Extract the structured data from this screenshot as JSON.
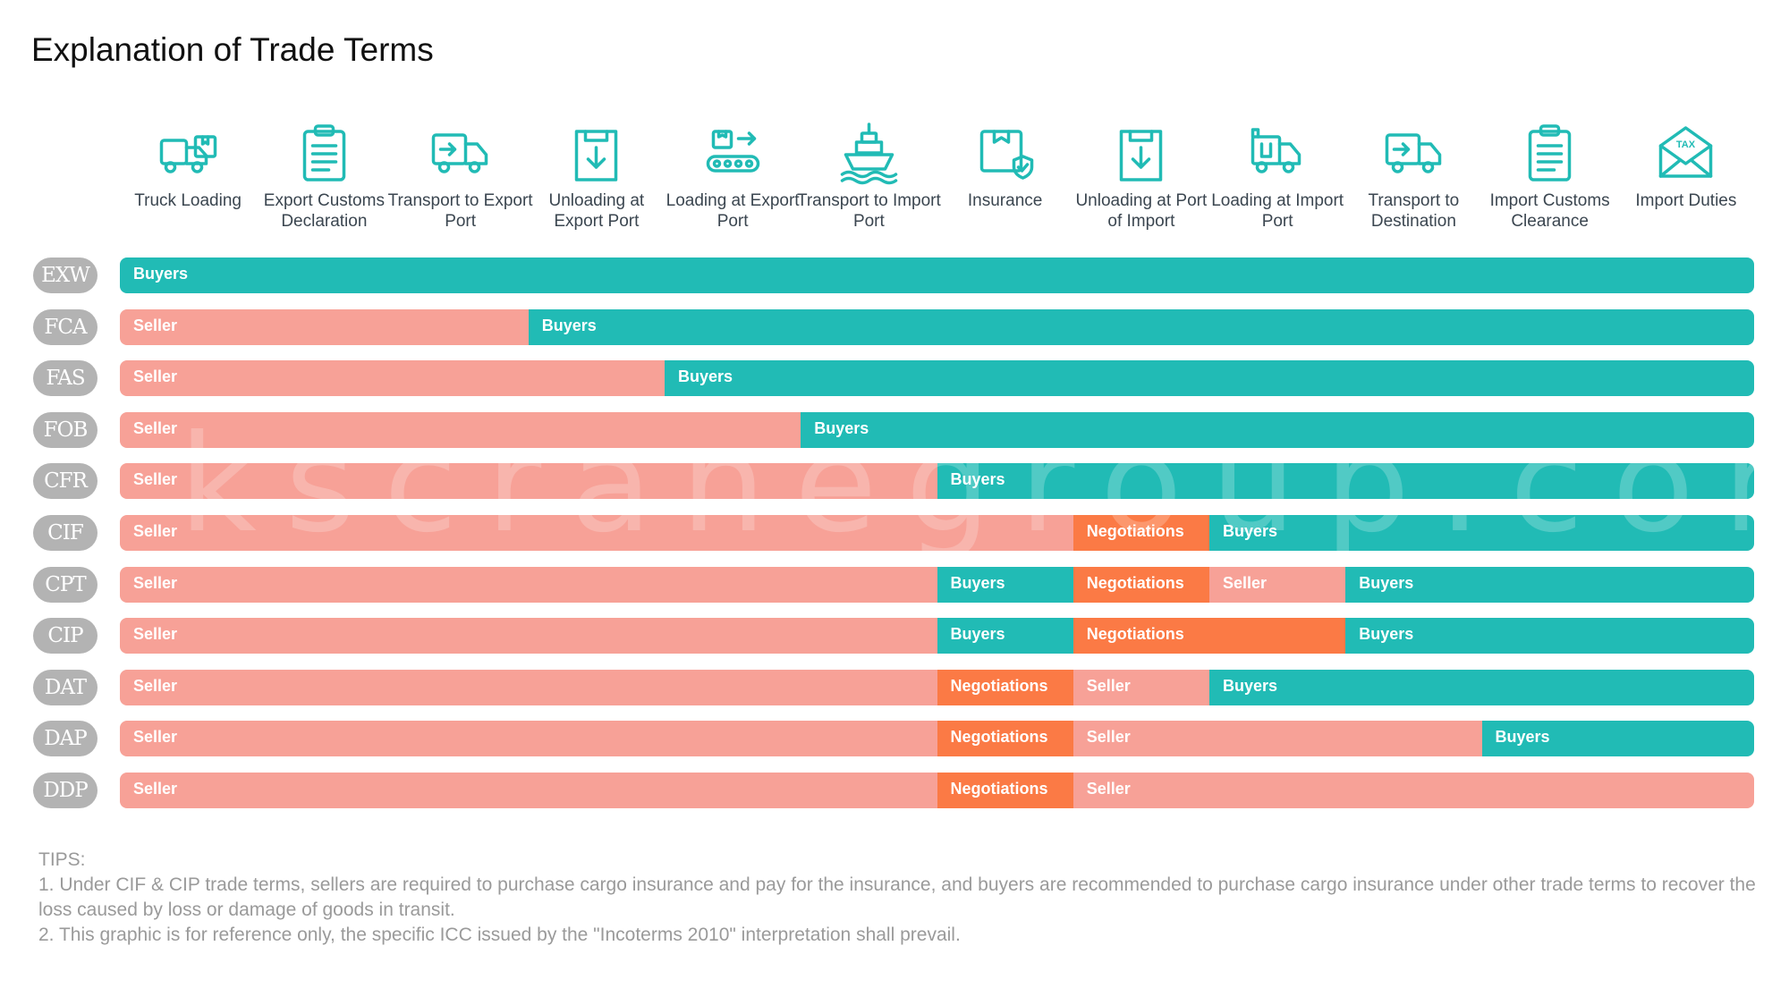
{
  "title": "Explanation of Trade Terms",
  "colors": {
    "buyers": "#21bbb5",
    "seller": "#f7a197",
    "negotiations": "#fb7a45",
    "badge": "#b3b3b3",
    "icon": "#21bbb5"
  },
  "stages": [
    {
      "label": "Truck Loading",
      "icon": "truck-loading-icon"
    },
    {
      "label": "Export Customs Declaration",
      "icon": "clipboard-icon"
    },
    {
      "label": "Transport to Export Port",
      "icon": "delivery-truck-icon"
    },
    {
      "label": "Unloading at Export Port",
      "icon": "unloading-box-icon"
    },
    {
      "label": "Loading at Export Port",
      "icon": "conveyor-icon"
    },
    {
      "label": "Transport to Import Port",
      "icon": "ship-icon"
    },
    {
      "label": "Insurance",
      "icon": "insured-box-icon"
    },
    {
      "label": "Unloading at Port of Import",
      "icon": "unloading-box-icon"
    },
    {
      "label": "Loading at Import Port",
      "icon": "loading-truck-icon"
    },
    {
      "label": "Transport to Destination",
      "icon": "delivery-truck-icon"
    },
    {
      "label": "Import Customs Clearance",
      "icon": "clipboard-icon"
    },
    {
      "label": "Import Duties",
      "icon": "tax-envelope-icon"
    }
  ],
  "terms": [
    {
      "code": "EXW",
      "segments": [
        {
          "party": "Buyers",
          "type": "buyers",
          "start": 0,
          "end": 12
        }
      ]
    },
    {
      "code": "FCA",
      "segments": [
        {
          "party": "Seller",
          "type": "seller",
          "start": 0,
          "end": 3
        },
        {
          "party": "Buyers",
          "type": "buyers",
          "start": 3,
          "end": 12
        }
      ]
    },
    {
      "code": "FAS",
      "segments": [
        {
          "party": "Seller",
          "type": "seller",
          "start": 0,
          "end": 4
        },
        {
          "party": "Buyers",
          "type": "buyers",
          "start": 4,
          "end": 12
        }
      ]
    },
    {
      "code": "FOB",
      "segments": [
        {
          "party": "Seller",
          "type": "seller",
          "start": 0,
          "end": 5
        },
        {
          "party": "Buyers",
          "type": "buyers",
          "start": 5,
          "end": 12
        }
      ]
    },
    {
      "code": "CFR",
      "segments": [
        {
          "party": "Seller",
          "type": "seller",
          "start": 0,
          "end": 6
        },
        {
          "party": "Buyers",
          "type": "buyers",
          "start": 6,
          "end": 12
        }
      ]
    },
    {
      "code": "CIF",
      "segments": [
        {
          "party": "Seller",
          "type": "seller",
          "start": 0,
          "end": 7
        },
        {
          "party": "Negotiations",
          "type": "neg",
          "start": 7,
          "end": 8
        },
        {
          "party": "Buyers",
          "type": "buyers",
          "start": 8,
          "end": 12
        }
      ]
    },
    {
      "code": "CPT",
      "segments": [
        {
          "party": "Seller",
          "type": "seller",
          "start": 0,
          "end": 6
        },
        {
          "party": "Buyers",
          "type": "buyers",
          "start": 6,
          "end": 7
        },
        {
          "party": "Negotiations",
          "type": "neg",
          "start": 7,
          "end": 8
        },
        {
          "party": "Seller",
          "type": "seller",
          "start": 8,
          "end": 9
        },
        {
          "party": "Buyers",
          "type": "buyers",
          "start": 9,
          "end": 12
        }
      ]
    },
    {
      "code": "CIP",
      "segments": [
        {
          "party": "Seller",
          "type": "seller",
          "start": 0,
          "end": 6
        },
        {
          "party": "Buyers",
          "type": "buyers",
          "start": 6,
          "end": 7
        },
        {
          "party": "Negotiations",
          "type": "neg",
          "start": 7,
          "end": 9
        },
        {
          "party": "Buyers",
          "type": "buyers",
          "start": 9,
          "end": 12
        }
      ]
    },
    {
      "code": "DAT",
      "segments": [
        {
          "party": "Seller",
          "type": "seller",
          "start": 0,
          "end": 6
        },
        {
          "party": "Negotiations",
          "type": "neg",
          "start": 6,
          "end": 7
        },
        {
          "party": "Seller",
          "type": "seller",
          "start": 7,
          "end": 8
        },
        {
          "party": "Buyers",
          "type": "buyers",
          "start": 8,
          "end": 12
        }
      ]
    },
    {
      "code": "DAP",
      "segments": [
        {
          "party": "Seller",
          "type": "seller",
          "start": 0,
          "end": 6
        },
        {
          "party": "Negotiations",
          "type": "neg",
          "start": 6,
          "end": 7
        },
        {
          "party": "Seller",
          "type": "seller",
          "start": 7,
          "end": 10
        },
        {
          "party": "Buyers",
          "type": "buyers",
          "start": 10,
          "end": 12
        }
      ]
    },
    {
      "code": "DDP",
      "segments": [
        {
          "party": "Seller",
          "type": "seller",
          "start": 0,
          "end": 6
        },
        {
          "party": "Negotiations",
          "type": "neg",
          "start": 6,
          "end": 7
        },
        {
          "party": "Seller",
          "type": "seller",
          "start": 7,
          "end": 12
        }
      ]
    }
  ],
  "watermark": "kscranegroup.com",
  "tips": {
    "heading": "TIPS:",
    "lines": [
      "1. Under CIF & CIP trade terms, sellers are required to purchase cargo insurance and pay for the insurance, and buyers are recommended to purchase cargo insurance under other trade terms to recover the loss caused by loss or damage of goods in transit.",
      "2. This graphic is for reference only, the specific ICC issued by the \"Incoterms 2010\" interpretation shall prevail."
    ]
  }
}
